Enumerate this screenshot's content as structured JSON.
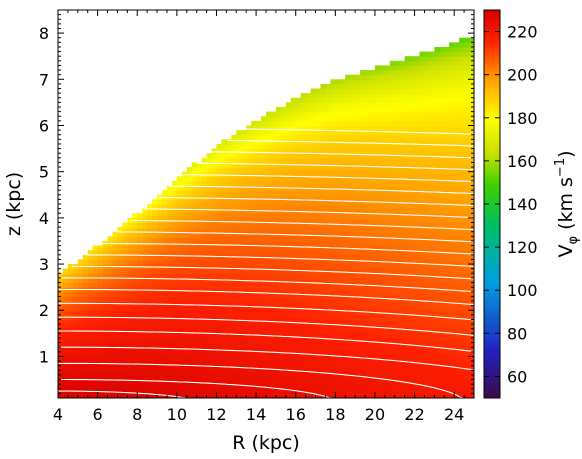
{
  "chart_data": {
    "type": "heatmap",
    "xlabel": "R (kpc)",
    "ylabel": "z (kpc)",
    "colorbar_label_main": "V",
    "colorbar_label_sub": "φ",
    "colorbar_label_unit": " (km s",
    "colorbar_label_exp": "−1",
    "colorbar_label_close": ")",
    "xlim": [
      4,
      25
    ],
    "ylim": [
      0.1,
      8.5
    ],
    "clim": [
      50,
      230
    ],
    "x_ticks": [
      4,
      6,
      8,
      10,
      12,
      14,
      16,
      18,
      20,
      22,
      24
    ],
    "y_ticks": [
      1,
      2,
      3,
      4,
      5,
      6,
      7,
      8
    ],
    "colorbar_ticks": [
      60,
      80,
      100,
      120,
      140,
      160,
      180,
      200,
      220
    ],
    "colormap": [
      "#3d0a4a",
      "#2020c0",
      "#00a0e0",
      "#00c060",
      "#40d000",
      "#c8e000",
      "#ffff00",
      "#ffa000",
      "#ff2000",
      "#d80000"
    ],
    "data_boundary": [
      [
        4.0,
        2.75
      ],
      [
        6.0,
        3.4
      ],
      [
        8.0,
        4.1
      ],
      [
        10.0,
        4.85
      ],
      [
        12.0,
        5.55
      ],
      [
        14.0,
        6.1
      ],
      [
        16.0,
        6.6
      ],
      [
        18.0,
        7.0
      ],
      [
        20.0,
        7.25
      ],
      [
        22.0,
        7.5
      ],
      [
        25.0,
        7.95
      ]
    ],
    "field": {
      "v0": 228,
      "radial_slope": 0.6,
      "vertical_drop": 4.8,
      "edge_drop": 30,
      "edge_width": 1.0
    },
    "contour_levels": [
      {
        "R0": 11.0,
        "z0": 0.25
      },
      {
        "R0": 18.0,
        "z0": 0.5
      },
      {
        "R0": 24.5,
        "z0": 0.85
      },
      {
        "R0": 30,
        "z0": 1.2
      },
      {
        "R0": 34,
        "z0": 1.55
      },
      {
        "R0": 38,
        "z0": 1.85
      },
      {
        "R0": 42,
        "z0": 2.15
      },
      {
        "R0": 46,
        "z0": 2.45
      },
      {
        "R0": 50,
        "z0": 2.7
      },
      {
        "R0": 54,
        "z0": 2.95
      },
      {
        "R0": 58,
        "z0": 3.2
      },
      {
        "R0": 62,
        "z0": 3.45
      },
      {
        "R0": 66,
        "z0": 3.7
      },
      {
        "R0": 70,
        "z0": 3.95
      },
      {
        "R0": 74,
        "z0": 4.2
      },
      {
        "R0": 78,
        "z0": 4.45
      },
      {
        "R0": 82,
        "z0": 4.7
      },
      {
        "R0": 86,
        "z0": 4.95
      },
      {
        "R0": 90,
        "z0": 5.2
      },
      {
        "R0": 94,
        "z0": 5.45
      },
      {
        "R0": 98,
        "z0": 5.7
      },
      {
        "R0": 102,
        "z0": 5.95
      }
    ]
  }
}
